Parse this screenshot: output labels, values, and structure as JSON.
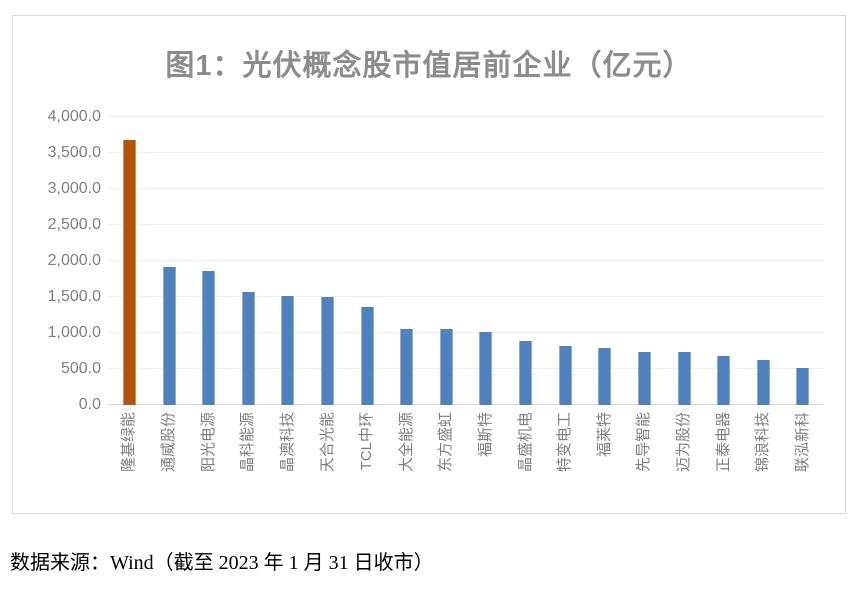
{
  "chart_data": {
    "type": "bar",
    "title": "图1：光伏概念股市值居前企业（亿元）",
    "categories": [
      "隆基绿能",
      "通威股份",
      "阳光电源",
      "晶科能源",
      "晶澳科技",
      "天合光能",
      "TCL中环",
      "大全能源",
      "东方盛虹",
      "福斯特",
      "晶盛机电",
      "特变电工",
      "福莱特",
      "先导智能",
      "迈为股份",
      "正泰电器",
      "锦浪科技",
      "联泓新科"
    ],
    "values": [
      3680,
      1910,
      1855,
      1565,
      1520,
      1500,
      1360,
      1055,
      1050,
      1010,
      890,
      820,
      795,
      740,
      730,
      680,
      630,
      515
    ],
    "highlight_index": 0,
    "bar_color": "#4F81BD",
    "highlight_color": "#B4530B",
    "xlabel": "",
    "ylabel": "",
    "ylim": [
      0,
      4000
    ],
    "ytick_step": 500,
    "ytick_labels": [
      "0.0",
      "500.0",
      "1,000.0",
      "1,500.0",
      "2,000.0",
      "2,500.0",
      "3,000.0",
      "3,500.0",
      "4,000.0"
    ],
    "grid": true,
    "legend": false
  },
  "colors": {
    "title": "#8C8C8C",
    "axis_label": "#7F7F7F",
    "gridline": "#EFEFEF",
    "axis_line": "#D9D9D9",
    "chart_border": "#D9D9D9"
  },
  "footer": {
    "text": "数据来源：Wind（截至 2023 年 1 月 31 日收市）"
  }
}
